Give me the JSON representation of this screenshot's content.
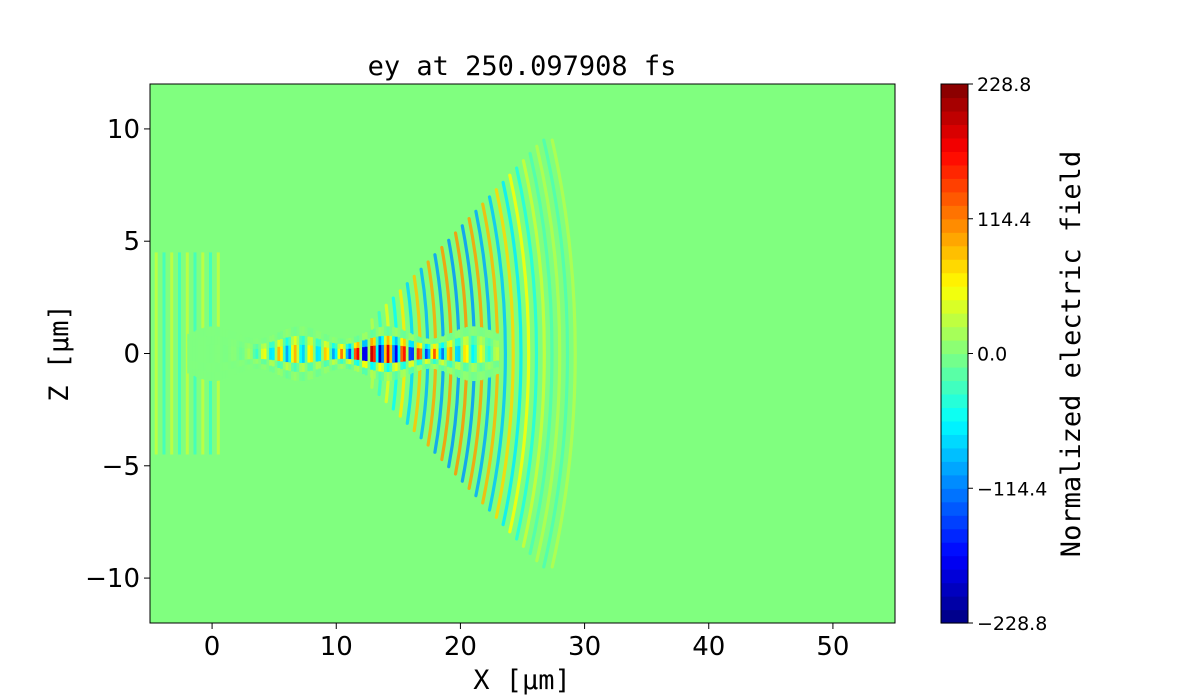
{
  "chart_data": {
    "type": "heatmap",
    "title": "ey at 250.097908 fs",
    "xlabel": "X [μm]",
    "ylabel": "Z [μm]",
    "xlim": [
      -5,
      55
    ],
    "ylim": [
      -12,
      12
    ],
    "x_ticks": [
      0,
      10,
      20,
      30,
      40,
      50
    ],
    "x_tick_labels": [
      "0",
      "10",
      "20",
      "30",
      "40",
      "50"
    ],
    "y_ticks": [
      -10,
      -5,
      0,
      5,
      10
    ],
    "y_tick_labels": [
      "−10",
      "−5",
      "0",
      "5",
      "10"
    ],
    "colormap": "jet",
    "background_color": "#80ff7f",
    "colorbar": {
      "label": "Normalized electric field",
      "vmin": -228.8,
      "vmax": 228.8,
      "ticks": [
        -228.8,
        -114.4,
        0.0,
        114.4,
        228.8
      ],
      "tick_labels": [
        "−228.8",
        "−114.4",
        "0.0",
        "114.4",
        "228.8"
      ],
      "levels": 40
    },
    "field_features": {
      "wavelength": 1.25,
      "channel": {
        "x_start": -2,
        "x_end": 23,
        "half_width": 1.1,
        "peak_x": 14.5,
        "peak_amplitude": 228.8
      },
      "diffracted_front": {
        "x_start": 13,
        "x_end": 29.5,
        "center_x": 4,
        "max_half_width": 9.5
      }
    }
  }
}
